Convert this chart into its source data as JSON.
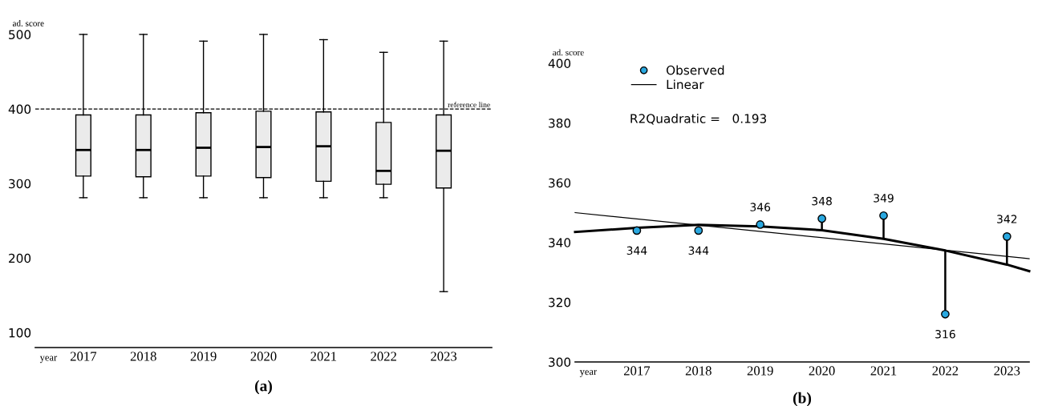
{
  "chart_data": [
    {
      "type": "box",
      "title": "(a)",
      "xlabel": "year",
      "ylabel": "ad. score",
      "categories": [
        "2017",
        "2018",
        "2019",
        "2020",
        "2021",
        "2022",
        "2023"
      ],
      "series": [
        {
          "color": "#ebebeb",
          "boxes": [
            {
              "low": 281,
              "q1": 310,
              "median": 345,
              "q3": 392,
              "high": 500
            },
            {
              "low": 281,
              "q1": 309,
              "median": 345,
              "q3": 392,
              "high": 500
            },
            {
              "low": 281,
              "q1": 310,
              "median": 348,
              "q3": 395,
              "high": 491
            },
            {
              "low": 281,
              "q1": 308,
              "median": 349,
              "q3": 397,
              "high": 500
            },
            {
              "low": 281,
              "q1": 303,
              "median": 350,
              "q3": 396,
              "high": 493
            },
            {
              "low": 281,
              "q1": 299,
              "median": 317,
              "q3": 382,
              "high": 476
            },
            {
              "low": 155,
              "q1": 294,
              "median": 344,
              "q3": 392,
              "high": 491
            }
          ]
        }
      ],
      "ylim": [
        80,
        500
      ],
      "yticks": [
        100,
        200,
        300,
        400,
        500
      ],
      "ref_lines": [
        {
          "axis": "y",
          "value": 400,
          "label": "reference line",
          "line_style": "dashed",
          "color": "#000000"
        }
      ],
      "grid": false
    },
    {
      "type": "scatter",
      "title": "(b)",
      "xlabel": "year",
      "ylabel": "ad. score",
      "xlim": [
        2016,
        2023.36
      ],
      "xticks": [
        2017,
        2018,
        2019,
        2020,
        2021,
        2022,
        2023
      ],
      "ylim": [
        300,
        400
      ],
      "yticks": [
        300,
        320,
        340,
        360,
        380,
        400
      ],
      "series": [
        {
          "name": "Observed",
          "type": "scatter",
          "marker": "circle",
          "color": "#29a8e0",
          "x": [
            2017,
            2018,
            2019,
            2020,
            2021,
            2022,
            2023
          ],
          "values": [
            344,
            344,
            346,
            348,
            349,
            316,
            342
          ],
          "value_labels": [
            "344",
            "344",
            "346",
            "348",
            "349",
            "316",
            "342"
          ],
          "errors": [
            null,
            null,
            null,
            [
              344.1,
              348
            ],
            [
              341.2,
              349
            ],
            [
              316,
              337.3
            ],
            [
              332.6,
              342
            ]
          ]
        },
        {
          "name": "Linear",
          "type": "line",
          "color": "#000000",
          "x": [
            2016,
            2023.36
          ],
          "values": [
            350,
            334.6
          ]
        },
        {
          "type": "line",
          "color": "#000000",
          "x": [
            2016,
            2017,
            2018,
            2019,
            2020,
            2021,
            2022,
            2023,
            2023.36
          ],
          "values": [
            343.5,
            344.9,
            345.9,
            345.4,
            344.1,
            341.2,
            337.3,
            332.6,
            330.4
          ]
        }
      ],
      "annotations": [
        "R2Quadratic =   0.193"
      ],
      "legend": "top left",
      "grid": false
    }
  ]
}
